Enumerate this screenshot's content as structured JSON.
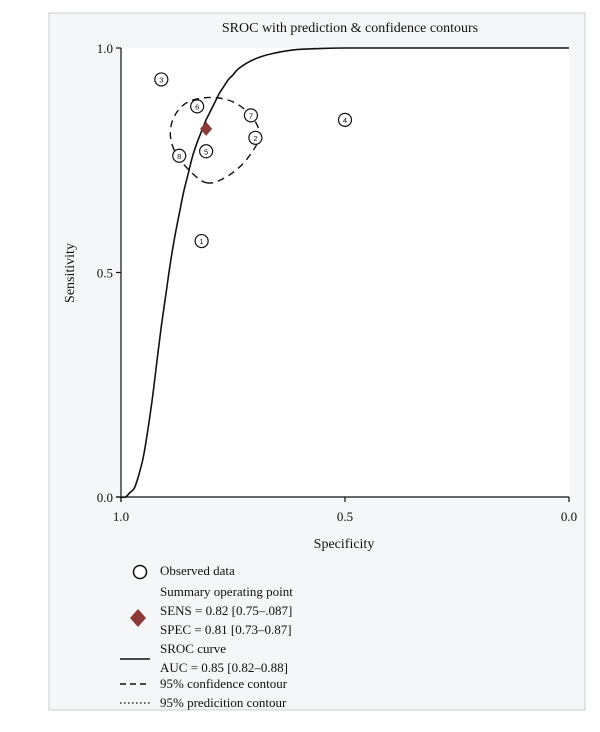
{
  "chart_data": {
    "type": "scatter",
    "title": "SROC with prediction & confidence contours",
    "xlabel": "Specificity",
    "ylabel": "Sensitivity",
    "xlim": [
      1.0,
      0.0
    ],
    "ylim": [
      0.0,
      1.0
    ],
    "x_ticks": [
      "1.0",
      "0.5",
      "0.0"
    ],
    "y_ticks": [
      "0.0",
      "0.5",
      "1.0"
    ],
    "x_reversed": true,
    "grid": false,
    "observed": [
      {
        "label": "1",
        "spec": 0.82,
        "sens": 0.57
      },
      {
        "label": "2",
        "spec": 0.7,
        "sens": 0.8
      },
      {
        "label": "3",
        "spec": 0.91,
        "sens": 0.93
      },
      {
        "label": "4",
        "spec": 0.5,
        "sens": 0.84
      },
      {
        "label": "5",
        "spec": 0.81,
        "sens": 0.77
      },
      {
        "label": "6",
        "spec": 0.83,
        "sens": 0.87
      },
      {
        "label": "7",
        "spec": 0.71,
        "sens": 0.85
      },
      {
        "label": "8",
        "spec": 0.87,
        "sens": 0.76
      }
    ],
    "summary_point": {
      "spec": 0.81,
      "sens": 0.82,
      "color": "#8b3a3a"
    },
    "sroc_curve": [
      [
        1.0,
        0.0
      ],
      [
        0.99,
        0.0
      ],
      [
        0.98,
        0.01
      ],
      [
        0.97,
        0.02
      ],
      [
        0.96,
        0.05
      ],
      [
        0.95,
        0.09
      ],
      [
        0.94,
        0.15
      ],
      [
        0.93,
        0.22
      ],
      [
        0.92,
        0.3
      ],
      [
        0.91,
        0.38
      ],
      [
        0.9,
        0.45
      ],
      [
        0.89,
        0.52
      ],
      [
        0.88,
        0.58
      ],
      [
        0.87,
        0.63
      ],
      [
        0.86,
        0.68
      ],
      [
        0.85,
        0.72
      ],
      [
        0.84,
        0.76
      ],
      [
        0.83,
        0.79
      ],
      [
        0.82,
        0.815
      ],
      [
        0.81,
        0.84
      ],
      [
        0.8,
        0.86
      ],
      [
        0.79,
        0.88
      ],
      [
        0.78,
        0.9
      ],
      [
        0.77,
        0.915
      ],
      [
        0.76,
        0.93
      ],
      [
        0.75,
        0.94
      ],
      [
        0.74,
        0.952
      ],
      [
        0.72,
        0.966
      ],
      [
        0.7,
        0.976
      ],
      [
        0.68,
        0.983
      ],
      [
        0.66,
        0.988
      ],
      [
        0.64,
        0.992
      ],
      [
        0.62,
        0.995
      ],
      [
        0.6,
        0.997
      ],
      [
        0.55,
        0.999
      ],
      [
        0.5,
        1.0
      ],
      [
        0.4,
        1.0
      ],
      [
        0.2,
        1.0
      ],
      [
        0.0,
        1.0
      ]
    ],
    "confidence_contour": [
      [
        0.81,
        0.7
      ],
      [
        0.77,
        0.71
      ],
      [
        0.73,
        0.74
      ],
      [
        0.7,
        0.78
      ],
      [
        0.69,
        0.81
      ],
      [
        0.71,
        0.85
      ],
      [
        0.75,
        0.88
      ],
      [
        0.8,
        0.89
      ],
      [
        0.85,
        0.88
      ],
      [
        0.88,
        0.85
      ],
      [
        0.89,
        0.81
      ],
      [
        0.88,
        0.77
      ],
      [
        0.85,
        0.73
      ],
      [
        0.81,
        0.7
      ]
    ],
    "legend": [
      {
        "marker": "circle",
        "text": [
          "Observed data"
        ]
      },
      {
        "marker": "diamond",
        "text": [
          "Summary operating point",
          "SENS = 0.82 [0.75–.087]",
          "SPEC = 0.81 [0.73–0.87]"
        ]
      },
      {
        "marker": "solid-line",
        "text": [
          "SROC curve",
          "AUC = 0.85 [0.82–0.88]"
        ]
      },
      {
        "marker": "dashed-line",
        "text": [
          "95% confidence contour"
        ]
      },
      {
        "marker": "dotted-line",
        "text": [
          "95% predicition contour"
        ]
      }
    ],
    "legend_placement": "bottom-left"
  }
}
